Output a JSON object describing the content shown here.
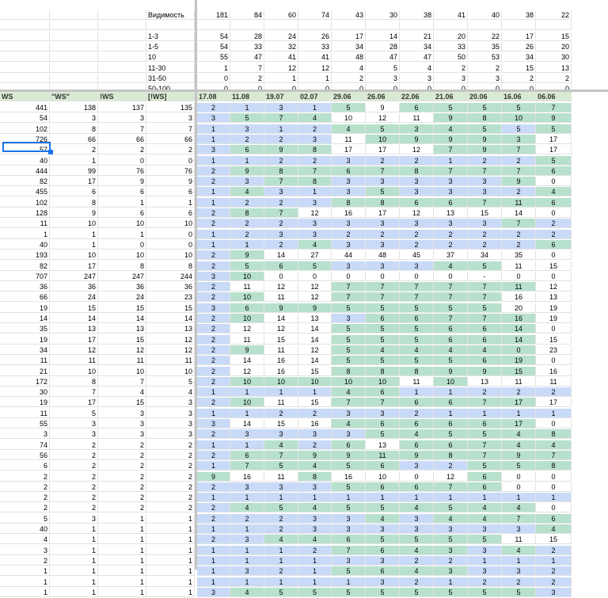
{
  "top_rows": [
    {
      "label": "Видимость",
      "values": [
        "181",
        "84",
        "60",
        "74",
        "43",
        "30",
        "38",
        "41",
        "40",
        "38",
        "22"
      ]
    },
    {
      "label": "",
      "values": [
        "",
        "",
        "",
        "",
        "",
        "",
        "",
        "",
        "",
        "",
        ""
      ]
    },
    {
      "label": "1-3",
      "values": [
        "54",
        "28",
        "24",
        "26",
        "17",
        "14",
        "21",
        "20",
        "22",
        "17",
        "15"
      ]
    },
    {
      "label": "1-5",
      "values": [
        "54",
        "33",
        "32",
        "33",
        "34",
        "28",
        "34",
        "33",
        "35",
        "26",
        "20"
      ]
    },
    {
      "label": "10",
      "values": [
        "55",
        "47",
        "41",
        "41",
        "48",
        "47",
        "47",
        "50",
        "53",
        "34",
        "30"
      ]
    },
    {
      "label": "11-30",
      "values": [
        "1",
        "7",
        "12",
        "12",
        "4",
        "5",
        "4",
        "2",
        "2",
        "15",
        "13"
      ]
    },
    {
      "label": "31-50",
      "values": [
        "0",
        "2",
        "1",
        "1",
        "2",
        "3",
        "3",
        "3",
        "3",
        "2",
        "2"
      ]
    },
    {
      "label": "50-100",
      "values": [
        "0",
        "0",
        "0",
        "0",
        "0",
        "0",
        "0",
        "0",
        "0",
        "0",
        "0"
      ]
    }
  ],
  "header": {
    "c0": "WS",
    "c1": "\"WS\"",
    "c2": "!WS",
    "c3": "[!WS]",
    "dates": [
      "17.08",
      "11.08",
      "19.07",
      "02.07",
      "29.06",
      "26.06",
      "22.06",
      "21.06",
      "20.06",
      "16.06",
      "06.06"
    ]
  },
  "rows": [
    {
      "c": [
        "441",
        "138",
        "137",
        "135"
      ],
      "d": [
        "2",
        "1",
        "3",
        "1",
        "5",
        "9",
        "6",
        "5",
        "5",
        "5",
        "7"
      ],
      "k": "bbbbgwggggg"
    },
    {
      "c": [
        "54",
        "3",
        "3",
        "3"
      ],
      "d": [
        "3",
        "5",
        "7",
        "4",
        "10",
        "12",
        "11",
        "9",
        "8",
        "10",
        "9"
      ],
      "k": "bgggwwwgggg"
    },
    {
      "c": [
        "102",
        "8",
        "7",
        "7"
      ],
      "d": [
        "1",
        "3",
        "1",
        "2",
        "4",
        "5",
        "3",
        "4",
        "5",
        "5",
        "5"
      ],
      "k": "bbbbgggggbg"
    },
    {
      "c": [
        "726",
        "66",
        "66",
        "66"
      ],
      "d": [
        "1",
        "2",
        "2",
        "3",
        "11",
        "10",
        "9",
        "9",
        "9",
        "3",
        "17"
      ],
      "k": "bbbbwgggggw"
    },
    {
      "c": [
        "57",
        "2",
        "2",
        "2"
      ],
      "d": [
        "3",
        "6",
        "9",
        "8",
        "17",
        "17",
        "12",
        "7",
        "9",
        "7",
        "17"
      ],
      "k": "bgggwwwgggw"
    },
    {
      "c": [
        "40",
        "1",
        "0",
        "0"
      ],
      "d": [
        "1",
        "1",
        "2",
        "2",
        "3",
        "2",
        "2",
        "1",
        "2",
        "2",
        "5"
      ],
      "k": "bbbbbbbbbbg"
    },
    {
      "c": [
        "444",
        "99",
        "76",
        "76"
      ],
      "d": [
        "2",
        "9",
        "8",
        "7",
        "6",
        "7",
        "8",
        "7",
        "7",
        "7",
        "6"
      ],
      "k": "bgggggggggg"
    },
    {
      "c": [
        "82",
        "17",
        "9",
        "9"
      ],
      "d": [
        "2",
        "3",
        "7",
        "8",
        "3",
        "3",
        "3",
        "3",
        "3",
        "9",
        "0"
      ],
      "k": "bbggbbbbbgw"
    },
    {
      "c": [
        "455",
        "6",
        "6",
        "6"
      ],
      "d": [
        "1",
        "4",
        "3",
        "1",
        "3",
        "5",
        "3",
        "3",
        "3",
        "2",
        "4"
      ],
      "k": "bgbbbgbbbbg"
    },
    {
      "c": [
        "102",
        "8",
        "1",
        "1"
      ],
      "d": [
        "1",
        "2",
        "2",
        "3",
        "8",
        "8",
        "6",
        "6",
        "7",
        "11",
        "6"
      ],
      "k": "bbbbggggggg"
    },
    {
      "c": [
        "128",
        "9",
        "6",
        "6"
      ],
      "d": [
        "2",
        "8",
        "7",
        "12",
        "16",
        "17",
        "12",
        "13",
        "15",
        "14",
        "0"
      ],
      "k": "bggwwwwwwww"
    },
    {
      "c": [
        "11",
        "10",
        "10",
        "10"
      ],
      "d": [
        "2",
        "2",
        "2",
        "3",
        "3",
        "3",
        "3",
        "3",
        "3",
        "7",
        "2"
      ],
      "k": "bbbbbbbbbgb"
    },
    {
      "c": [
        "1",
        "1",
        "1",
        "0"
      ],
      "d": [
        "1",
        "2",
        "3",
        "3",
        "2",
        "2",
        "2",
        "2",
        "2",
        "2",
        "2"
      ],
      "k": "bbbbbbbbbbb"
    },
    {
      "c": [
        "40",
        "1",
        "0",
        "0"
      ],
      "d": [
        "1",
        "1",
        "2",
        "4",
        "3",
        "3",
        "2",
        "2",
        "2",
        "2",
        "6"
      ],
      "k": "bbbgbbbbbbg"
    },
    {
      "c": [
        "193",
        "10",
        "10",
        "10"
      ],
      "d": [
        "2",
        "9",
        "14",
        "27",
        "44",
        "48",
        "45",
        "37",
        "34",
        "35",
        "0"
      ],
      "k": "bgwwwwwwwww"
    },
    {
      "c": [
        "82",
        "17",
        "8",
        "8"
      ],
      "d": [
        "2",
        "5",
        "6",
        "5",
        "3",
        "3",
        "3",
        "4",
        "5",
        "11",
        "15"
      ],
      "k": "bgggbbbggww"
    },
    {
      "c": [
        "707",
        "247",
        "247",
        "244"
      ],
      "d": [
        "3",
        "10",
        "0",
        "0",
        "0",
        "0",
        "0",
        "0",
        "-",
        "0",
        "0"
      ],
      "k": "bgwwwwwwwww"
    },
    {
      "c": [
        "36",
        "36",
        "36",
        "36"
      ],
      "d": [
        "2",
        "11",
        "12",
        "12",
        "7",
        "7",
        "7",
        "7",
        "7",
        "11",
        "12"
      ],
      "k": "bwwwggggggw"
    },
    {
      "c": [
        "66",
        "24",
        "24",
        "23"
      ],
      "d": [
        "2",
        "10",
        "11",
        "12",
        "7",
        "7",
        "7",
        "7",
        "7",
        "16",
        "13"
      ],
      "k": "bgwwgggggww"
    },
    {
      "c": [
        "19",
        "15",
        "15",
        "15"
      ],
      "d": [
        "3",
        "6",
        "9",
        "9",
        "5",
        "5",
        "5",
        "5",
        "5",
        "20",
        "19"
      ],
      "k": "bggggggggww"
    },
    {
      "c": [
        "14",
        "14",
        "14",
        "14"
      ],
      "d": [
        "2",
        "10",
        "14",
        "13",
        "3",
        "6",
        "6",
        "7",
        "7",
        "16",
        "19"
      ],
      "k": "bgwwbgggggw"
    },
    {
      "c": [
        "35",
        "13",
        "13",
        "13"
      ],
      "d": [
        "2",
        "12",
        "12",
        "14",
        "5",
        "5",
        "5",
        "6",
        "6",
        "14",
        "0"
      ],
      "k": "bwwwggggggw"
    },
    {
      "c": [
        "19",
        "17",
        "15",
        "12"
      ],
      "d": [
        "2",
        "11",
        "15",
        "14",
        "5",
        "5",
        "5",
        "6",
        "6",
        "14",
        "15"
      ],
      "k": "bwwwggggggw"
    },
    {
      "c": [
        "34",
        "12",
        "12",
        "12"
      ],
      "d": [
        "2",
        "9",
        "11",
        "12",
        "5",
        "4",
        "4",
        "4",
        "4",
        "0",
        "23"
      ],
      "k": "bgwwggggggw"
    },
    {
      "c": [
        "11",
        "11",
        "11",
        "11"
      ],
      "d": [
        "2",
        "14",
        "16",
        "14",
        "5",
        "5",
        "5",
        "5",
        "6",
        "19",
        "0"
      ],
      "k": "bwwwggggggw"
    },
    {
      "c": [
        "21",
        "10",
        "10",
        "10"
      ],
      "d": [
        "2",
        "12",
        "16",
        "15",
        "8",
        "8",
        "8",
        "9",
        "9",
        "15",
        "16"
      ],
      "k": "bwwwggggggw"
    },
    {
      "c": [
        "172",
        "8",
        "7",
        "5"
      ],
      "d": [
        "2",
        "10",
        "10",
        "10",
        "10",
        "10",
        "11",
        "10",
        "13",
        "11",
        "11"
      ],
      "k": "bgggggwgwww"
    },
    {
      "c": [
        "30",
        "7",
        "4",
        "4"
      ],
      "d": [
        "1",
        "1",
        "1",
        "1",
        "4",
        "6",
        "1",
        "1",
        "2",
        "2",
        "2"
      ],
      "k": "bbbbggbbbbb"
    },
    {
      "c": [
        "19",
        "17",
        "15",
        "3"
      ],
      "d": [
        "2",
        "10",
        "11",
        "15",
        "7",
        "7",
        "6",
        "6",
        "7",
        "17",
        "17"
      ],
      "k": "bgwwggggggw"
    },
    {
      "c": [
        "11",
        "5",
        "3",
        "3"
      ],
      "d": [
        "1",
        "1",
        "2",
        "2",
        "3",
        "3",
        "2",
        "1",
        "1",
        "1",
        "1"
      ],
      "k": "bbbbbbbbbbb"
    },
    {
      "c": [
        "55",
        "3",
        "3",
        "3"
      ],
      "d": [
        "3",
        "14",
        "15",
        "16",
        "4",
        "6",
        "6",
        "6",
        "6",
        "17",
        "0"
      ],
      "k": "bwwwggggggw"
    },
    {
      "c": [
        "3",
        "3",
        "3",
        "3"
      ],
      "d": [
        "2",
        "3",
        "3",
        "3",
        "3",
        "5",
        "4",
        "5",
        "5",
        "4",
        "8"
      ],
      "k": "bbbbbgggggg"
    },
    {
      "c": [
        "74",
        "2",
        "2",
        "2"
      ],
      "d": [
        "1",
        "1",
        "4",
        "2",
        "6",
        "13",
        "6",
        "6",
        "7",
        "4",
        "4"
      ],
      "k": "bbgbgwggggg"
    },
    {
      "c": [
        "56",
        "2",
        "2",
        "2"
      ],
      "d": [
        "2",
        "6",
        "7",
        "9",
        "9",
        "11",
        "9",
        "8",
        "7",
        "9",
        "7"
      ],
      "k": "bgggggggggg"
    },
    {
      "c": [
        "6",
        "2",
        "2",
        "2"
      ],
      "d": [
        "1",
        "7",
        "5",
        "4",
        "5",
        "6",
        "3",
        "2",
        "5",
        "5",
        "8"
      ],
      "k": "bgggggbbggg"
    },
    {
      "c": [
        "2",
        "2",
        "2",
        "2"
      ],
      "d": [
        "9",
        "16",
        "11",
        "8",
        "16",
        "10",
        "0",
        "12",
        "6",
        "0",
        "0"
      ],
      "k": "gwwgwwwwgww"
    },
    {
      "c": [
        "2",
        "2",
        "2",
        "2"
      ],
      "d": [
        "2",
        "3",
        "3",
        "3",
        "5",
        "6",
        "6",
        "7",
        "6",
        "0",
        "0"
      ],
      "k": "bbbbgggggww"
    },
    {
      "c": [
        "2",
        "2",
        "2",
        "2"
      ],
      "d": [
        "1",
        "1",
        "1",
        "1",
        "1",
        "1",
        "1",
        "1",
        "1",
        "1",
        "1"
      ],
      "k": "bbbbbbbbbbb"
    },
    {
      "c": [
        "2",
        "2",
        "2",
        "2"
      ],
      "d": [
        "2",
        "4",
        "5",
        "4",
        "5",
        "5",
        "4",
        "5",
        "4",
        "4",
        "0"
      ],
      "k": "bgggggggggw"
    },
    {
      "c": [
        "5",
        "3",
        "1",
        "1"
      ],
      "d": [
        "2",
        "2",
        "2",
        "3",
        "3",
        "4",
        "3",
        "4",
        "4",
        "7",
        "6"
      ],
      "k": "bbbbbgbgggg"
    },
    {
      "c": [
        "40",
        "1",
        "1",
        "1"
      ],
      "d": [
        "1",
        "1",
        "2",
        "3",
        "3",
        "3",
        "3",
        "3",
        "3",
        "3",
        "4"
      ],
      "k": "bbbbbbbbbbg"
    },
    {
      "c": [
        "4",
        "1",
        "1",
        "1"
      ],
      "d": [
        "2",
        "3",
        "4",
        "4",
        "6",
        "5",
        "5",
        "5",
        "5",
        "11",
        "15"
      ],
      "k": "bbgggggggww"
    },
    {
      "c": [
        "3",
        "1",
        "1",
        "1"
      ],
      "d": [
        "1",
        "1",
        "1",
        "2",
        "7",
        "6",
        "4",
        "3",
        "3",
        "4",
        "2"
      ],
      "k": "bbbbggggbgb"
    },
    {
      "c": [
        "2",
        "1",
        "1",
        "1"
      ],
      "d": [
        "1",
        "1",
        "1",
        "1",
        "3",
        "3",
        "2",
        "2",
        "1",
        "1",
        "1"
      ],
      "k": "bbbbbbbbbbb"
    },
    {
      "c": [
        "1",
        "1",
        "1",
        "1"
      ],
      "d": [
        "1",
        "3",
        "2",
        "1",
        "5",
        "6",
        "4",
        "3",
        "3",
        "3",
        "2"
      ],
      "k": "bbbbggggbbb"
    },
    {
      "c": [
        "1",
        "1",
        "1",
        "1"
      ],
      "d": [
        "1",
        "1",
        "1",
        "1",
        "1",
        "3",
        "2",
        "1",
        "2",
        "2",
        "2"
      ],
      "k": "bbbbbbbbbbb"
    },
    {
      "c": [
        "1",
        "1",
        "1",
        "1"
      ],
      "d": [
        "3",
        "4",
        "5",
        "5",
        "5",
        "5",
        "5",
        "5",
        "5",
        "5",
        "3"
      ],
      "k": "bgggggggggb"
    }
  ],
  "colors": {
    "blue": "#c9daf8",
    "green": "#b7e1cd",
    "header": "#d9ead3",
    "selection": "#1a73e8"
  }
}
